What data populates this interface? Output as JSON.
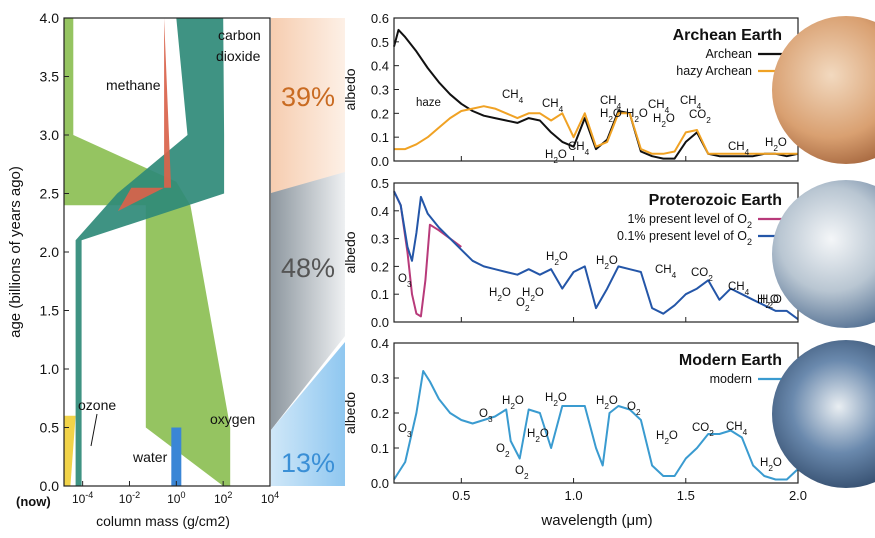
{
  "colors": {
    "methane": "#d9634b",
    "carbon_dioxide": "#2f8a78",
    "oxygen": "#8cbf54",
    "water": "#3a86d6",
    "ozone": "#f0cf3a",
    "archean": "#111111",
    "hazy_archean": "#f0a224",
    "proterozoic_1pct": "#b83a7a",
    "proterozoic_01pct": "#2456a8",
    "modern": "#3a9bd0",
    "band_archean": "#f3c9ad",
    "band_proterozoic": "#9aa4ad",
    "band_modern": "#bfe0f6",
    "pct_archean": "#c96b22",
    "pct_proterozoic": "#555555",
    "pct_modern": "#3a8fd6"
  },
  "left_chart": {
    "ylabel": "age (billions of years ago)",
    "xlabel": "column mass (g/cm2)",
    "now_label": "(now)",
    "yticks": [
      "0.0",
      "0.5",
      "1.0",
      "1.5",
      "2.0",
      "2.5",
      "3.0",
      "3.5",
      "4.0"
    ],
    "xticks": [
      {
        "base": "10",
        "exp": "-4",
        "log": -4
      },
      {
        "base": "10",
        "exp": "-2",
        "log": -2
      },
      {
        "base": "10",
        "exp": "0",
        "log": 0
      },
      {
        "base": "10",
        "exp": "2",
        "log": 2
      },
      {
        "base": "10",
        "exp": "4",
        "log": 4
      }
    ],
    "labels": {
      "methane": "methane",
      "carbon": "carbon",
      "dioxide": "dioxide",
      "ozone": "ozone",
      "water": "water",
      "oxygen": "oxygen"
    }
  },
  "percentages": {
    "archean": "39%",
    "proterozoic": "48%",
    "modern": "13%"
  },
  "chart_data": [
    {
      "type": "area",
      "title": "",
      "xlabel": "column mass (g/cm2)",
      "ylabel": "age (billions of years ago)",
      "xscale": "log",
      "xlim": [
        1.6e-05,
        10000
      ],
      "ylim": [
        0,
        4
      ],
      "series": [
        {
          "name": "methane",
          "x_left": [
            0.3,
            0.3,
            0.012,
            0.0032,
            0.0015,
            0.0013
          ],
          "x_right": [
            0.3,
            0.6,
            0.3,
            0.0032,
            0.0015,
            0.0013
          ],
          "age": [
            4.0,
            2.55,
            2.55,
            2.35,
            0.6,
            0.0
          ]
        },
        {
          "name": "carbon dioxide",
          "x_left": [
            1.0,
            3.0,
            0.003,
            5e-05,
            5e-05
          ],
          "x_right": [
            100,
            110,
            110,
            9e-05,
            9e-05
          ],
          "age": [
            4.0,
            3.0,
            2.5,
            2.1,
            0.0
          ]
        },
        {
          "name": "oxygen",
          "x_left": [
            1.6e-05,
            1.6e-05,
            1.6e-05,
            0.0,
            0.05,
            0.05,
            100
          ],
          "x_right": [
            4e-05,
            4e-05,
            1.0,
            4.0,
            4.0,
            200,
            200
          ],
          "age": [
            4.0,
            3.0,
            2.6,
            2.4,
            2.4,
            0.5,
            0.0
          ]
        },
        {
          "name": "water",
          "x": [
            1.0
          ],
          "age_range": [
            0,
            0.5
          ]
        },
        {
          "name": "ozone",
          "x_left": [
            1.6e-05,
            1.6e-05
          ],
          "x_right": [
            5e-05,
            3e-05
          ],
          "age": [
            0.6,
            0.0
          ]
        }
      ]
    },
    {
      "type": "line",
      "title": "Archean Earth",
      "xlabel": "wavelength (μm)",
      "ylabel": "albedo",
      "xlim": [
        0.2,
        2.0
      ],
      "ylim": [
        0,
        0.6
      ],
      "yticks": [
        "0.0",
        "0.1",
        "0.2",
        "0.3",
        "0.4",
        "0.5",
        "0.6"
      ],
      "series": [
        {
          "name": "Archean",
          "x": [
            0.2,
            0.22,
            0.25,
            0.3,
            0.35,
            0.4,
            0.45,
            0.5,
            0.55,
            0.6,
            0.65,
            0.7,
            0.75,
            0.8,
            0.85,
            0.9,
            0.95,
            1.0,
            1.05,
            1.1,
            1.15,
            1.2,
            1.25,
            1.3,
            1.35,
            1.4,
            1.45,
            1.5,
            1.55,
            1.6,
            1.65,
            1.7,
            1.75,
            1.8,
            1.85,
            1.9,
            1.95,
            2.0
          ],
          "y": [
            0.48,
            0.55,
            0.52,
            0.46,
            0.39,
            0.33,
            0.28,
            0.24,
            0.21,
            0.19,
            0.18,
            0.17,
            0.16,
            0.18,
            0.17,
            0.12,
            0.08,
            0.06,
            0.18,
            0.05,
            0.09,
            0.21,
            0.2,
            0.04,
            0.02,
            0.01,
            0.01,
            0.08,
            0.12,
            0.03,
            0.02,
            0.02,
            0.02,
            0.02,
            0.03,
            0.03,
            0.02,
            0.03
          ]
        },
        {
          "name": "hazy Archean",
          "x": [
            0.2,
            0.25,
            0.3,
            0.35,
            0.4,
            0.45,
            0.5,
            0.55,
            0.6,
            0.65,
            0.7,
            0.75,
            0.8,
            0.85,
            0.9,
            0.95,
            1.0,
            1.05,
            1.1,
            1.15,
            1.2,
            1.25,
            1.3,
            1.35,
            1.4,
            1.45,
            1.5,
            1.55,
            1.6,
            1.65,
            1.7,
            1.75,
            1.8,
            1.85,
            1.9,
            1.95,
            2.0
          ],
          "y": [
            0.05,
            0.05,
            0.07,
            0.1,
            0.14,
            0.18,
            0.21,
            0.22,
            0.23,
            0.22,
            0.2,
            0.18,
            0.2,
            0.2,
            0.17,
            0.2,
            0.1,
            0.2,
            0.06,
            0.08,
            0.2,
            0.2,
            0.05,
            0.03,
            0.03,
            0.04,
            0.12,
            0.13,
            0.03,
            0.03,
            0.03,
            0.03,
            0.03,
            0.03,
            0.03,
            0.03,
            0.03
          ]
        }
      ],
      "annotations": [
        "haze",
        "CH4",
        "CH4",
        "CH4",
        "CH4",
        "CO2",
        "CH4",
        "H2O",
        "H2O",
        "H2O",
        "H2O",
        "CH4",
        "H2O"
      ]
    },
    {
      "type": "line",
      "title": "Proterozoic Earth",
      "xlabel": "wavelength (μm)",
      "ylabel": "albedo",
      "xlim": [
        0.2,
        2.0
      ],
      "ylim": [
        0,
        0.5
      ],
      "yticks": [
        "0.0",
        "0.1",
        "0.2",
        "0.3",
        "0.4",
        "0.5"
      ],
      "series": [
        {
          "name": "1% present level of O2",
          "x": [
            0.2,
            0.23,
            0.26,
            0.28,
            0.3,
            0.32,
            0.34,
            0.36,
            0.4,
            0.45,
            0.5
          ],
          "y": [
            0.47,
            0.42,
            0.25,
            0.1,
            0.03,
            0.02,
            0.15,
            0.35,
            0.33,
            0.3,
            0.27
          ]
        },
        {
          "name": "0.1% present level of O2",
          "x": [
            0.2,
            0.23,
            0.26,
            0.28,
            0.3,
            0.32,
            0.35,
            0.4,
            0.45,
            0.5,
            0.55,
            0.6,
            0.65,
            0.7,
            0.75,
            0.8,
            0.85,
            0.9,
            0.95,
            1.0,
            1.05,
            1.1,
            1.15,
            1.2,
            1.25,
            1.3,
            1.35,
            1.4,
            1.45,
            1.5,
            1.55,
            1.6,
            1.65,
            1.7,
            1.75,
            1.8,
            1.85,
            1.9,
            1.95,
            2.0
          ],
          "y": [
            0.47,
            0.42,
            0.27,
            0.22,
            0.32,
            0.45,
            0.39,
            0.34,
            0.3,
            0.26,
            0.22,
            0.2,
            0.19,
            0.18,
            0.17,
            0.19,
            0.17,
            0.19,
            0.12,
            0.18,
            0.2,
            0.05,
            0.12,
            0.2,
            0.19,
            0.18,
            0.05,
            0.03,
            0.06,
            0.1,
            0.12,
            0.15,
            0.08,
            0.12,
            0.1,
            0.08,
            0.06,
            0.04,
            0.04,
            0.01
          ]
        }
      ],
      "annotations": [
        "O3",
        "H2O",
        "O2",
        "H2O",
        "H2O",
        "H2O",
        "H2O",
        "CH4",
        "H2O",
        "CO2",
        "CH4",
        "H2O"
      ]
    },
    {
      "type": "line",
      "title": "Modern Earth",
      "xlabel": "wavelength (μm)",
      "ylabel": "albedo",
      "xlim": [
        0.2,
        2.0
      ],
      "ylim": [
        0,
        0.4
      ],
      "yticks": [
        "0.0",
        "0.1",
        "0.2",
        "0.3",
        "0.4"
      ],
      "series": [
        {
          "name": "modern",
          "x": [
            0.2,
            0.25,
            0.3,
            0.33,
            0.36,
            0.4,
            0.45,
            0.5,
            0.55,
            0.6,
            0.65,
            0.7,
            0.72,
            0.76,
            0.8,
            0.85,
            0.9,
            0.95,
            1.0,
            1.05,
            1.1,
            1.13,
            1.16,
            1.2,
            1.25,
            1.3,
            1.35,
            1.4,
            1.45,
            1.5,
            1.55,
            1.6,
            1.65,
            1.7,
            1.75,
            1.8,
            1.85,
            1.9,
            1.95,
            2.0
          ],
          "y": [
            0.01,
            0.06,
            0.2,
            0.32,
            0.29,
            0.24,
            0.2,
            0.18,
            0.17,
            0.18,
            0.19,
            0.21,
            0.12,
            0.07,
            0.21,
            0.2,
            0.1,
            0.22,
            0.22,
            0.22,
            0.1,
            0.05,
            0.2,
            0.22,
            0.21,
            0.18,
            0.05,
            0.02,
            0.02,
            0.07,
            0.1,
            0.14,
            0.14,
            0.15,
            0.13,
            0.05,
            0.02,
            0.01,
            0.01,
            0.04
          ]
        }
      ],
      "annotations": [
        "O3",
        "O3",
        "H2O",
        "H2O",
        "O2",
        "H2O",
        "O2",
        "H2O",
        "O2",
        "H2O",
        "CO2",
        "CH4",
        "H2O"
      ]
    }
  ],
  "legends": {
    "archean": {
      "title": "Archean Earth",
      "entries": [
        "Archean",
        "hazy Archean"
      ]
    },
    "proterozoic": {
      "title": "Proterozoic Earth",
      "entries": [
        "1% present level of O",
        "0.1% present level of O"
      ],
      "sub": "2"
    },
    "modern": {
      "title": "Modern Earth",
      "entries": [
        "modern"
      ]
    }
  },
  "spectra_xaxis": {
    "label": "wavelength (μm)",
    "ticks": [
      "0.5",
      "1.0",
      "1.5",
      "2.0"
    ]
  },
  "spectra_ylabel": "albedo",
  "annotations": {
    "archean": [
      {
        "text": "haze"
      },
      {
        "text": "CH",
        "sub": "4"
      },
      {
        "text": "CH",
        "sub": "4"
      },
      {
        "text": "H",
        "sub": "2",
        "tail": "O"
      },
      {
        "text": "CH",
        "sub": "4"
      },
      {
        "text": "CH",
        "sub": "4"
      },
      {
        "text": "H",
        "sub": "2",
        "tail": "O"
      },
      {
        "text": "CH",
        "sub": "4"
      },
      {
        "text": "H",
        "sub": "2",
        "tail": "O"
      },
      {
        "text": "CO",
        "sub": "2"
      },
      {
        "text": "CH",
        "sub": "4"
      },
      {
        "text": "H",
        "sub": "2",
        "tail": "O"
      },
      {
        "text": "H",
        "sub": "2",
        "tail": "O"
      },
      {
        "text": "CH",
        "sub": "4"
      }
    ],
    "proterozoic": [
      {
        "text": "O",
        "sub": "3"
      },
      {
        "text": "H",
        "sub": "2",
        "tail": "O"
      },
      {
        "text": "O",
        "sub": "2"
      },
      {
        "text": "H",
        "sub": "2",
        "tail": "O"
      },
      {
        "text": "H",
        "sub": "2",
        "tail": "O"
      },
      {
        "text": "H",
        "sub": "2",
        "tail": "O"
      },
      {
        "text": "CH",
        "sub": "4"
      },
      {
        "text": "H",
        "sub": "2",
        "tail": "O"
      },
      {
        "text": "CO",
        "sub": "2"
      },
      {
        "text": "CH",
        "sub": "4"
      },
      {
        "text": "H",
        "sub": "2",
        "tail": "O"
      }
    ],
    "modern": [
      {
        "text": "O",
        "sub": "3"
      },
      {
        "text": "O",
        "sub": "3"
      },
      {
        "text": "H",
        "sub": "2",
        "tail": "O"
      },
      {
        "text": "O",
        "sub": "2"
      },
      {
        "text": "H",
        "sub": "2",
        "tail": "O"
      },
      {
        "text": "O",
        "sub": "2"
      },
      {
        "text": "H",
        "sub": "2",
        "tail": "O"
      },
      {
        "text": "H",
        "sub": "2",
        "tail": "O"
      },
      {
        "text": "O",
        "sub": "2"
      },
      {
        "text": "H",
        "sub": "2",
        "tail": "O"
      },
      {
        "text": "CO",
        "sub": "2"
      },
      {
        "text": "CH",
        "sub": "4"
      },
      {
        "text": "H",
        "sub": "2",
        "tail": "O"
      }
    ]
  }
}
